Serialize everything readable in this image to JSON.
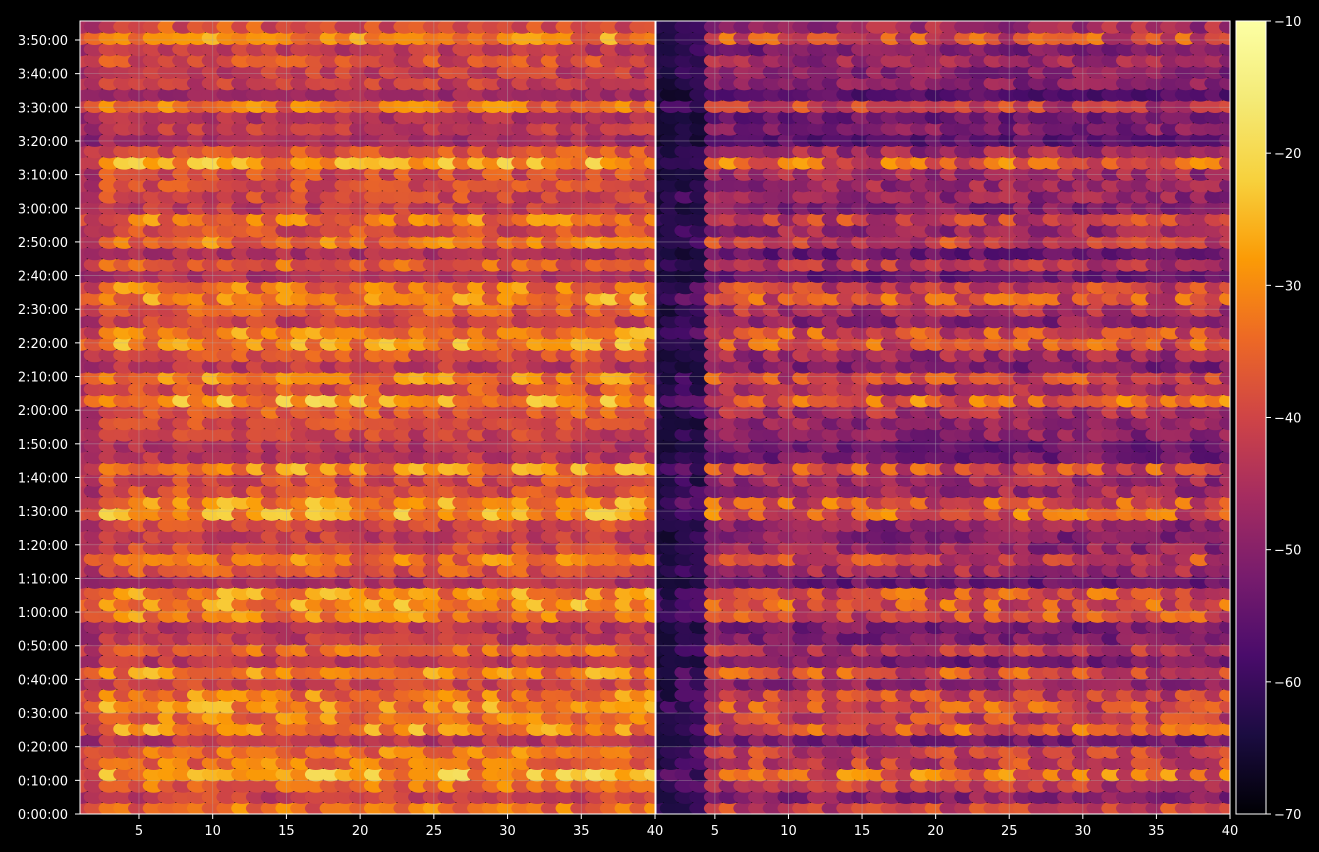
{
  "chart_data": {
    "type": "heatmap",
    "colormap": "inferno",
    "background": "#000000",
    "grid": true,
    "panels": [
      {
        "name": "",
        "x": {
          "min": 1,
          "max": 40,
          "ticks": [
            5,
            10,
            15,
            20,
            25,
            30,
            35,
            40
          ],
          "tick_labels": [
            "5",
            "10",
            "15",
            "20",
            "25",
            "30",
            "35",
            "40"
          ]
        },
        "y": {
          "min": "0:00:00",
          "max": "3:55:00",
          "tick_labels": [
            "0:00:00",
            "0:10:00",
            "0:20:00",
            "0:30:00",
            "0:40:00",
            "0:50:00",
            "1:00:00",
            "1:10:00",
            "1:20:00",
            "1:30:00",
            "1:40:00",
            "1:50:00",
            "2:00:00",
            "2:10:00",
            "2:20:00",
            "2:30:00",
            "2:40:00",
            "2:50:00",
            "3:00:00",
            "3:10:00",
            "3:20:00",
            "3:30:00",
            "3:40:00",
            "3:50:00"
          ]
        },
        "level_range": [
          -58,
          -18
        ]
      },
      {
        "name": "",
        "x": {
          "min": 1,
          "max": 40,
          "ticks": [
            5,
            10,
            15,
            20,
            25,
            30,
            35,
            40
          ],
          "tick_labels": [
            "5",
            "10",
            "15",
            "20",
            "25",
            "30",
            "35",
            "40"
          ]
        },
        "y": {
          "min": "0:00:00",
          "max": "3:55:00"
        },
        "level_range": [
          -68,
          -25
        ]
      }
    ],
    "colorbar": {
      "min": -70,
      "max": -10,
      "ticks": [
        -10,
        -20,
        -30,
        -40,
        -50,
        -60,
        -70
      ],
      "tick_labels": [
        "−10",
        "−20",
        "−30",
        "−40",
        "−50",
        "−60",
        "−70"
      ]
    }
  }
}
